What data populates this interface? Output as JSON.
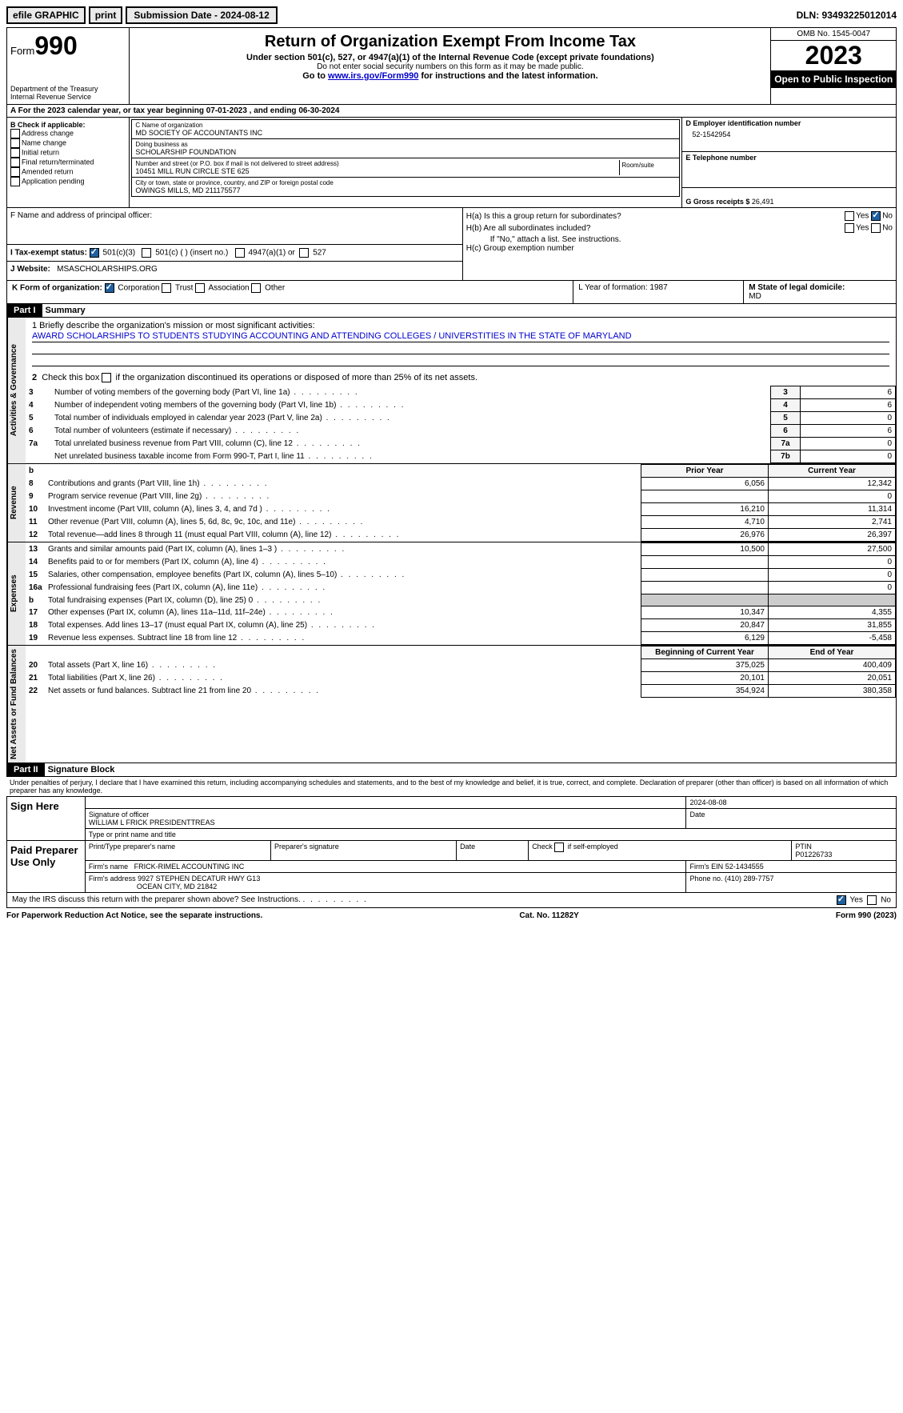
{
  "top": {
    "efile": "efile GRAPHIC",
    "print": "print",
    "submission": "Submission Date - 2024-08-12",
    "dln": "DLN: 93493225012014"
  },
  "header": {
    "form": "Form",
    "formno": "990",
    "dept": "Department of the Treasury",
    "irs": "Internal Revenue Service",
    "title": "Return of Organization Exempt From Income Tax",
    "sub1": "Under section 501(c), 527, or 4947(a)(1) of the Internal Revenue Code (except private foundations)",
    "sub2": "Do not enter social security numbers on this form as it may be made public.",
    "goto_pre": "Go to ",
    "goto_link": "www.irs.gov/Form990",
    "goto_post": " for instructions and the latest information.",
    "omb": "OMB No. 1545-0047",
    "year": "2023",
    "open": "Open to Public Inspection"
  },
  "rowA": "A For the 2023 calendar year, or tax year beginning 07-01-2023   , and ending 06-30-2024",
  "boxB": {
    "label": "B Check if applicable:",
    "opts": [
      "Address change",
      "Name change",
      "Initial return",
      "Final return/terminated",
      "Amended return",
      "Application pending"
    ]
  },
  "boxC": {
    "name_label": "C Name of organization",
    "name": "MD SOCIETY OF ACCOUNTANTS INC",
    "dba_label": "Doing business as",
    "dba": "SCHOLARSHIP FOUNDATION",
    "addr_label": "Number and street (or P.O. box if mail is not delivered to street address)",
    "room_label": "Room/suite",
    "addr": "10451 MILL RUN CIRCLE STE 625",
    "city_label": "City or town, state or province, country, and ZIP or foreign postal code",
    "city": "OWINGS MILLS, MD  211175577"
  },
  "boxD": {
    "label": "D Employer identification number",
    "val": "52-1542954"
  },
  "boxE": {
    "label": "E Telephone number",
    "val": ""
  },
  "boxG": {
    "label": "G Gross receipts $ ",
    "val": "26,491"
  },
  "boxF": "F   Name and address of principal officer:",
  "boxH": {
    "a": "H(a)  Is this a group return for subordinates?",
    "b": "H(b)  Are all subordinates included?",
    "note": "If \"No,\" attach a list. See instructions.",
    "c": "H(c)  Group exemption number  "
  },
  "boxI": {
    "label": "I    Tax-exempt status:",
    "o1": "501(c)(3)",
    "o2": "501(c) (  ) (insert no.)",
    "o3": "4947(a)(1) or",
    "o4": "527"
  },
  "boxJ": {
    "label": "J   Website: ",
    "val": "MSASCHOLARSHIPS.ORG"
  },
  "boxK": {
    "label": "K Form of organization:",
    "o1": "Corporation",
    "o2": "Trust",
    "o3": "Association",
    "o4": "Other"
  },
  "boxL": "L Year of formation: 1987",
  "boxM": {
    "label": "M State of legal domicile:",
    "val": "MD"
  },
  "part1": {
    "hdr": "Part I",
    "title": "Summary"
  },
  "summary": {
    "l1_label": "1  Briefly describe the organization's mission or most significant activities:",
    "l1_text": "AWARD SCHOLARSHIPS TO STUDENTS STUDYING ACCOUNTING AND ATTENDING COLLEGES / UNIVERSTITIES IN THE STATE OF MARYLAND",
    "l2": "2   Check this box       if the organization discontinued its operations or disposed of more than 25% of its net assets.",
    "gov": [
      {
        "n": "3",
        "t": "Number of voting members of the governing body (Part VI, line 1a)",
        "k": "3",
        "v": "6"
      },
      {
        "n": "4",
        "t": "Number of independent voting members of the governing body (Part VI, line 1b)",
        "k": "4",
        "v": "6"
      },
      {
        "n": "5",
        "t": "Total number of individuals employed in calendar year 2023 (Part V, line 2a)",
        "k": "5",
        "v": "0"
      },
      {
        "n": "6",
        "t": "Total number of volunteers (estimate if necessary)",
        "k": "6",
        "v": "6"
      },
      {
        "n": "7a",
        "t": "Total unrelated business revenue from Part VIII, column (C), line 12",
        "k": "7a",
        "v": "0"
      },
      {
        "n": "",
        "t": "Net unrelated business taxable income from Form 990-T, Part I, line 11",
        "k": "7b",
        "v": "0"
      }
    ],
    "col_prior": "Prior Year",
    "col_curr": "Current Year",
    "rev": [
      {
        "n": "8",
        "t": "Contributions and grants (Part VIII, line 1h)",
        "p": "6,056",
        "c": "12,342"
      },
      {
        "n": "9",
        "t": "Program service revenue (Part VIII, line 2g)",
        "p": "",
        "c": "0"
      },
      {
        "n": "10",
        "t": "Investment income (Part VIII, column (A), lines 3, 4, and 7d )",
        "p": "16,210",
        "c": "11,314"
      },
      {
        "n": "11",
        "t": "Other revenue (Part VIII, column (A), lines 5, 6d, 8c, 9c, 10c, and 11e)",
        "p": "4,710",
        "c": "2,741"
      },
      {
        "n": "12",
        "t": "Total revenue—add lines 8 through 11 (must equal Part VIII, column (A), line 12)",
        "p": "26,976",
        "c": "26,397"
      }
    ],
    "exp": [
      {
        "n": "13",
        "t": "Grants and similar amounts paid (Part IX, column (A), lines 1–3 )",
        "p": "10,500",
        "c": "27,500"
      },
      {
        "n": "14",
        "t": "Benefits paid to or for members (Part IX, column (A), line 4)",
        "p": "",
        "c": "0"
      },
      {
        "n": "15",
        "t": "Salaries, other compensation, employee benefits (Part IX, column (A), lines 5–10)",
        "p": "",
        "c": "0"
      },
      {
        "n": "16a",
        "t": "Professional fundraising fees (Part IX, column (A), line 11e)",
        "p": "",
        "c": "0"
      },
      {
        "n": "b",
        "t": "Total fundraising expenses (Part IX, column (D), line 25) 0",
        "p": "GREY",
        "c": "GREY"
      },
      {
        "n": "17",
        "t": "Other expenses (Part IX, column (A), lines 11a–11d, 11f–24e)",
        "p": "10,347",
        "c": "4,355"
      },
      {
        "n": "18",
        "t": "Total expenses. Add lines 13–17 (must equal Part IX, column (A), line 25)",
        "p": "20,847",
        "c": "31,855"
      },
      {
        "n": "19",
        "t": "Revenue less expenses. Subtract line 18 from line 12",
        "p": "6,129",
        "c": "-5,458"
      }
    ],
    "col_beg": "Beginning of Current Year",
    "col_end": "End of Year",
    "net": [
      {
        "n": "20",
        "t": "Total assets (Part X, line 16)",
        "p": "375,025",
        "c": "400,409"
      },
      {
        "n": "21",
        "t": "Total liabilities (Part X, line 26)",
        "p": "20,101",
        "c": "20,051"
      },
      {
        "n": "22",
        "t": "Net assets or fund balances. Subtract line 21 from line 20",
        "p": "354,924",
        "c": "380,358"
      }
    ],
    "vlabels": {
      "gov": "Activities & Governance",
      "rev": "Revenue",
      "exp": "Expenses",
      "net": "Net Assets or Fund Balances"
    }
  },
  "part2": {
    "hdr": "Part II",
    "title": "Signature Block"
  },
  "sig": {
    "penalty": "Under penalties of perjury, I declare that I have examined this return, including accompanying schedules and statements, and to the best of my knowledge and belief, it is true, correct, and complete. Declaration of preparer (other than officer) is based on all information of which preparer has any knowledge.",
    "here": "Sign Here",
    "date": "2024-08-08",
    "sig_label": "Signature of officer",
    "officer": "WILLIAM L FRICK  PRESIDENTTREAS",
    "type_label": "Type or print name and title",
    "date_label": "Date",
    "paid": "Paid Preparer Use Only",
    "prep_name_label": "Print/Type preparer's name",
    "prep_sig_label": "Preparer's signature",
    "check_label": "Check        if self-employed",
    "ptin_label": "PTIN",
    "ptin": "P01226733",
    "firm_name_label": "Firm's name  ",
    "firm_name": "FRICK-RIMEL ACCOUNTING INC",
    "firm_ein_label": "Firm's EIN  ",
    "firm_ein": "52-1434555",
    "firm_addr_label": "Firm's address ",
    "firm_addr1": "9927 STEPHEN DECATUR HWY G13",
    "firm_addr2": "OCEAN CITY, MD  21842",
    "phone_label": "Phone no. ",
    "phone": "(410) 289-7757",
    "discuss": "May the IRS discuss this return with the preparer shown above? See Instructions."
  },
  "footer": {
    "pra": "For Paperwork Reduction Act Notice, see the separate instructions.",
    "cat": "Cat. No. 11282Y",
    "form": "Form 990 (2023)"
  },
  "yn": {
    "yes": "Yes",
    "no": "No"
  }
}
